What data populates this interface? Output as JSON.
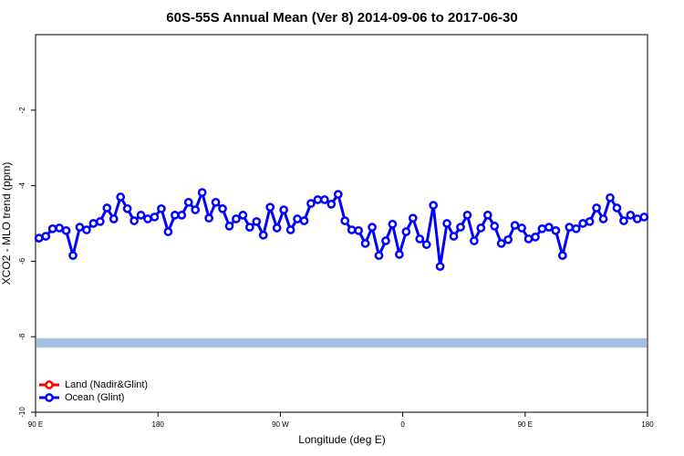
{
  "chart_data": {
    "type": "line",
    "title": "60S-55S Annual Mean (Ver 8)   2014-09-06 to 2017-06-30",
    "xlabel": "Longitude (deg E)",
    "ylabel": "XCO2 - MLO trend (ppm)",
    "xlim": [
      90,
      540
    ],
    "ylim": [
      -10,
      0
    ],
    "xticks": [
      {
        "value": 90,
        "label": "90 E"
      },
      180,
      {
        "value": 270,
        "label": "90 W"
      },
      {
        "value": 360,
        "label": "0"
      },
      {
        "value": 450,
        "label": "90 E"
      },
      {
        "value": 540,
        "label": "180"
      }
    ],
    "yticks": [
      -10,
      -8,
      -6,
      -4,
      -2
    ],
    "legend": "bottom-left",
    "reference_band": {
      "range": [
        -8.29,
        -8.04
      ],
      "color": "#a4bde0"
    },
    "x": [
      92.5,
      97.5,
      102.5,
      107.5,
      112.5,
      117.5,
      122.5,
      127.5,
      132.5,
      137.5,
      142.5,
      147.5,
      152.5,
      157.5,
      162.5,
      167.5,
      172.5,
      177.5,
      182.5,
      187.5,
      192.5,
      197.5,
      202.5,
      207.5,
      212.5,
      217.5,
      222.5,
      227.5,
      232.5,
      237.5,
      242.5,
      247.5,
      252.5,
      257.5,
      262.5,
      267.5,
      272.5,
      277.5,
      282.5,
      287.5,
      292.5,
      297.5,
      302.5,
      307.5,
      312.5,
      317.5,
      322.5,
      327.5,
      332.5,
      337.5,
      342.5,
      347.5,
      352.5,
      357.5,
      362.5,
      367.5,
      372.5,
      377.5,
      382.5,
      387.5,
      392.5,
      397.5,
      402.5,
      407.5,
      412.5,
      417.5,
      422.5,
      427.5,
      432.5,
      437.5,
      442.5,
      447.5,
      452.5,
      457.5,
      462.5,
      467.5,
      472.5,
      477.5,
      482.5,
      487.5,
      492.5,
      497.5,
      502.5,
      507.5,
      512.5,
      517.5,
      522.5,
      527.5,
      532.5,
      537.5
    ],
    "series": [
      {
        "name": "Land (Nadir&Glint)",
        "color": "#ff0000",
        "values": [
          null,
          null,
          null,
          null,
          null,
          null,
          null,
          null,
          null,
          null,
          null,
          null,
          null,
          null,
          null,
          null,
          null,
          null,
          null,
          null,
          null,
          null,
          null,
          null,
          null,
          null,
          null,
          null,
          null,
          null,
          null,
          null,
          null,
          null,
          null,
          null,
          null,
          null,
          null,
          null,
          null,
          null,
          null,
          null,
          null,
          null,
          null,
          null,
          null,
          null,
          null,
          null,
          null,
          null,
          null,
          null,
          null,
          null,
          null,
          null,
          null,
          null,
          null,
          null,
          null,
          null,
          null,
          null,
          null,
          null,
          null,
          null,
          null,
          null,
          null,
          null,
          null,
          null,
          null,
          null,
          null,
          null,
          null,
          null,
          null,
          null,
          null,
          null,
          null,
          null
        ]
      },
      {
        "name": "Ocean (Glint)",
        "color": "#0000ff",
        "values": [
          -5.39,
          -5.34,
          -5.14,
          -5.12,
          -5.19,
          -5.85,
          -5.1,
          -5.17,
          -5.0,
          -4.95,
          -4.59,
          -4.88,
          -4.3,
          -4.61,
          -4.93,
          -4.78,
          -4.88,
          -4.83,
          -4.61,
          -5.22,
          -4.78,
          -4.78,
          -4.44,
          -4.64,
          -4.18,
          -4.86,
          -4.44,
          -4.61,
          -5.07,
          -4.88,
          -4.78,
          -5.1,
          -4.95,
          -5.31,
          -4.57,
          -5.12,
          -4.64,
          -5.17,
          -4.88,
          -4.93,
          -4.47,
          -4.37,
          -4.37,
          -4.49,
          -4.23,
          -4.93,
          -5.17,
          -5.19,
          -5.53,
          -5.1,
          -5.85,
          -5.46,
          -5.02,
          -5.82,
          -5.22,
          -4.86,
          -5.41,
          -5.56,
          -4.52,
          -6.14,
          -5.0,
          -5.34,
          -5.1,
          -4.78,
          -5.46,
          -5.12,
          -4.78,
          -5.07,
          -5.53,
          -5.43,
          -5.05,
          -5.12,
          -5.41,
          -5.36,
          -5.14,
          -5.1,
          -5.19,
          -5.85,
          -5.1,
          -5.14,
          -5.0,
          -4.95,
          -4.59,
          -4.88,
          -4.32,
          -4.59,
          -4.93,
          -4.78,
          -4.88,
          -4.83
        ]
      }
    ]
  }
}
